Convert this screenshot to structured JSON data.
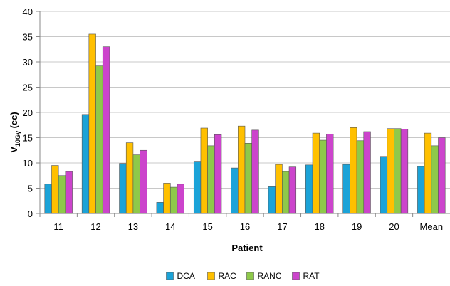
{
  "chart_data": {
    "type": "bar",
    "title": "",
    "xlabel": "Patient",
    "ylabel": "V10Gy (cc)",
    "ylabel_main": "V",
    "ylabel_sub": "10Gy",
    "ylabel_unit": " (cc)",
    "ylim": [
      0,
      40
    ],
    "yticks": [
      0,
      5,
      10,
      15,
      20,
      25,
      30,
      35,
      40
    ],
    "grid": true,
    "legend_position": "bottom",
    "categories": [
      "11",
      "12",
      "13",
      "14",
      "15",
      "16",
      "17",
      "18",
      "19",
      "20",
      "Mean"
    ],
    "series": [
      {
        "name": "DCA",
        "color": "#1ba3d8",
        "values": [
          5.8,
          19.6,
          9.9,
          2.2,
          10.2,
          9.0,
          5.3,
          9.6,
          9.7,
          11.3,
          9.3
        ]
      },
      {
        "name": "RAC",
        "color": "#ffc000",
        "values": [
          9.5,
          35.5,
          14.0,
          6.0,
          16.9,
          17.3,
          9.7,
          15.9,
          17.0,
          16.8,
          15.9
        ]
      },
      {
        "name": "RANC",
        "color": "#8ec94a",
        "values": [
          7.5,
          29.2,
          11.6,
          5.2,
          13.4,
          13.9,
          8.3,
          14.5,
          14.4,
          16.8,
          13.4
        ]
      },
      {
        "name": "RAT",
        "color": "#cc44cc",
        "values": [
          8.3,
          33.0,
          12.5,
          5.8,
          15.6,
          16.5,
          9.2,
          15.7,
          16.2,
          16.7,
          15.0
        ]
      }
    ]
  }
}
